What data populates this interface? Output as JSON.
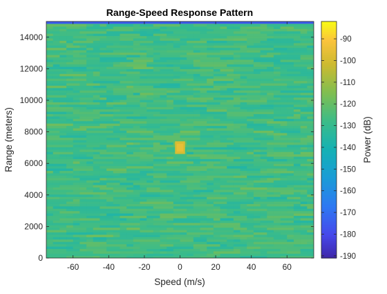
{
  "chart_data": {
    "type": "heatmap",
    "title": "Range-Speed Response Pattern",
    "xlabel": "Speed (m/s)",
    "ylabel": "Range (meters)",
    "xlim": [
      -75,
      75
    ],
    "ylim": [
      0,
      15000
    ],
    "x_ticks": [
      -60,
      -40,
      -20,
      0,
      20,
      40,
      60
    ],
    "y_ticks": [
      0,
      2000,
      4000,
      6000,
      8000,
      10000,
      12000,
      14000
    ],
    "colorbar": {
      "label": "Power (dB)",
      "range": [
        -191,
        -82
      ],
      "ticks": [
        -90,
        -100,
        -110,
        -120,
        -130,
        -140,
        -150,
        -160,
        -170,
        -180,
        -190
      ],
      "colormap": "parula"
    },
    "background_level_db": -127,
    "background_spread_db": 10,
    "peak": {
      "speed": 0,
      "range": 7000,
      "power_db": -95
    },
    "top_edge_level_db": -175,
    "grid": false,
    "colors": {
      "axes_bg": "#ffffff",
      "axis_color": "#262626",
      "title_color": "#000000"
    }
  }
}
